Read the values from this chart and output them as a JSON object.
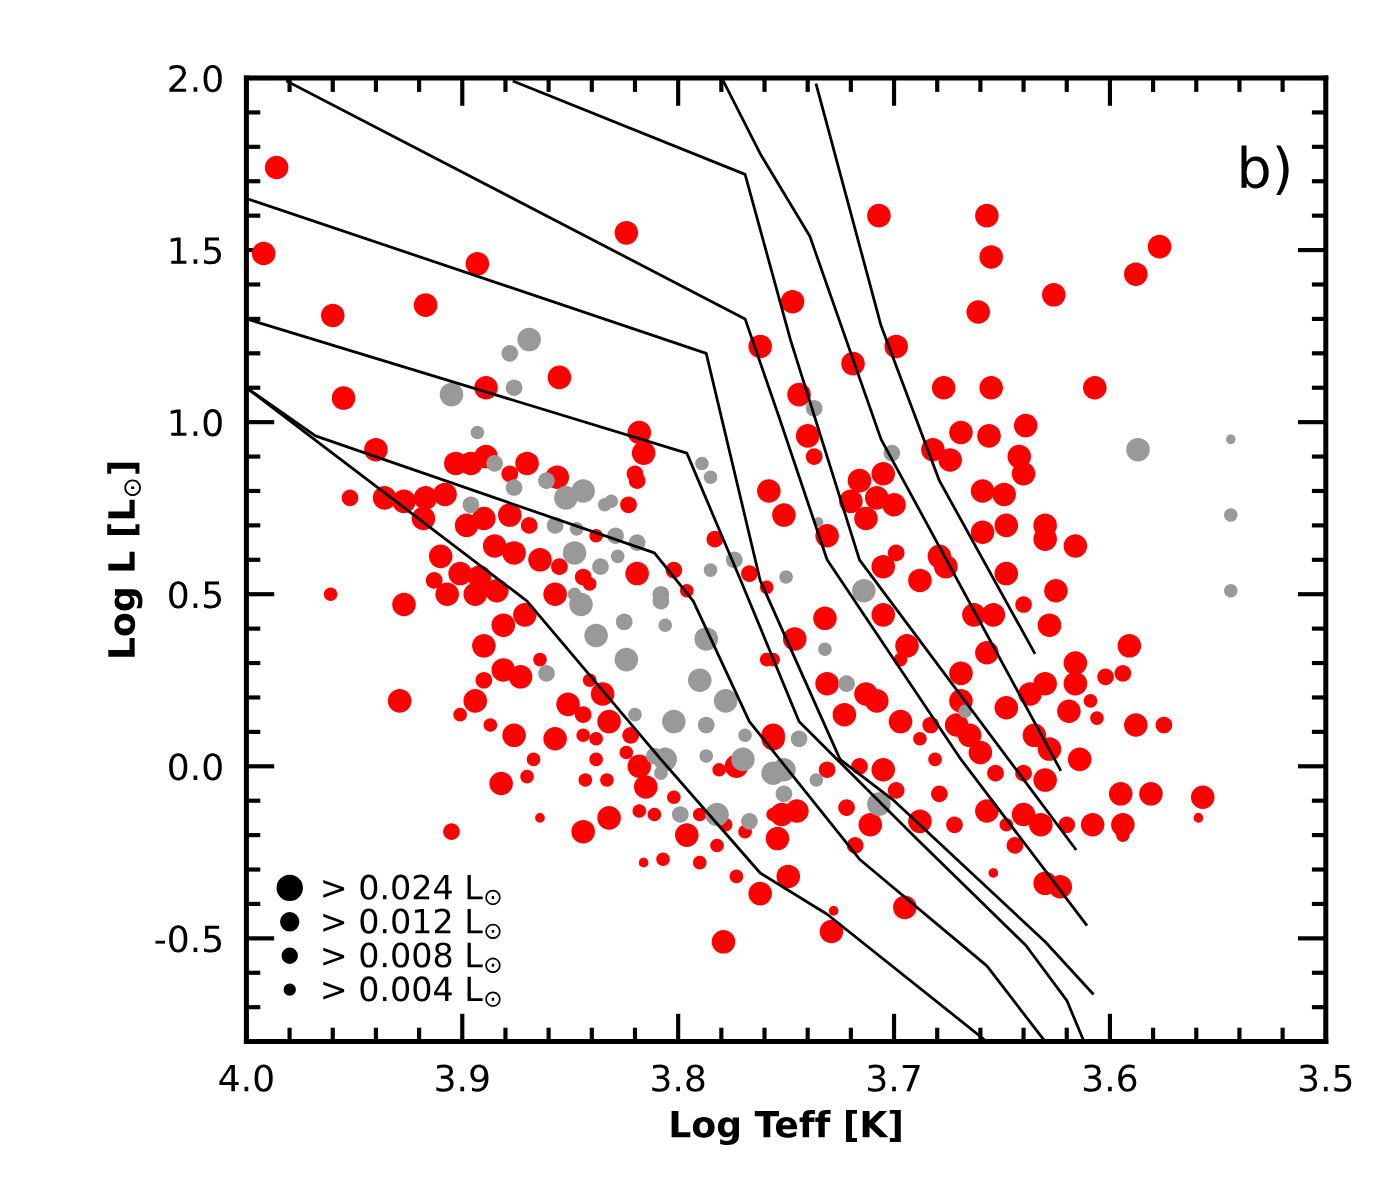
{
  "chart_data": {
    "type": "bubble",
    "xlabel": "Log Teff [K]",
    "ylabel": "Log L [L$_{⊙}$]",
    "annotations": [
      "b)"
    ],
    "xlim": [
      4.0,
      3.5
    ],
    "xticks": [
      {
        "value": 4,
        "label": "4.0"
      },
      3.9,
      3.8,
      3.7,
      3.6,
      3.5
    ],
    "ylim": [
      -0.8,
      2.0
    ],
    "yticks": [
      -0.5,
      {
        "value": 0,
        "label": "0.0"
      },
      0.5,
      {
        "value": 1,
        "label": "1.0"
      },
      1.5,
      {
        "value": 2,
        "label": "2.0"
      }
    ],
    "grid": false,
    "size_legend": [
      {
        "value": 0.024,
        "label": "> 0.024 L$_{⊙}$"
      },
      {
        "value": 0.012,
        "label": "> 0.012 L$_{⊙}$"
      },
      {
        "value": 0.008,
        "label": "> 0.008 L$_{⊙}$"
      },
      {
        "value": 0.004,
        "label": "> 0.004 L$_{⊙}$"
      }
    ],
    "series": [
      {
        "type": "line",
        "color": "#000000",
        "x": [
          4.0,
          3.87,
          3.808,
          3.762,
          3.731,
          3.657
        ],
        "values": [
          1.1,
          0.48,
          0.02,
          -0.31,
          -0.43,
          -0.8
        ]
      },
      {
        "type": "line",
        "color": "#000000",
        "x": [
          4.0,
          3.968,
          3.811,
          3.793,
          3.767,
          3.716,
          3.657,
          3.63
        ],
        "values": [
          1.1,
          0.96,
          0.62,
          0.48,
          0.13,
          -0.27,
          -0.58,
          -0.8
        ]
      },
      {
        "type": "line",
        "color": "#000000",
        "x": [
          4.0,
          3.796,
          3.771,
          3.744,
          3.688,
          3.639,
          3.62,
          3.612
        ],
        "values": [
          1.3,
          0.91,
          0.54,
          0.13,
          -0.22,
          -0.52,
          -0.68,
          -0.8
        ]
      },
      {
        "type": "line",
        "color": "#000000",
        "x": [
          4.0,
          3.787,
          3.762,
          3.725,
          3.7,
          3.63,
          3.608
        ],
        "values": [
          1.65,
          1.2,
          0.54,
          0.02,
          -0.1,
          -0.51,
          -0.66
        ]
      },
      {
        "type": "line",
        "color": "#000000",
        "x": [
          3.981,
          3.769,
          3.753,
          3.731,
          3.669,
          3.611
        ],
        "values": [
          1.99,
          1.3,
          1.01,
          0.6,
          0.02,
          -0.46
        ]
      },
      {
        "type": "line",
        "color": "#000000",
        "x": [
          3.876,
          3.769,
          3.748,
          3.716,
          3.616
        ],
        "values": [
          1.99,
          1.72,
          1.24,
          0.6,
          -0.24
        ]
      },
      {
        "type": "line",
        "color": "#000000",
        "x": [
          3.779,
          3.762,
          3.739,
          3.706,
          3.623
        ],
        "values": [
          1.99,
          1.78,
          1.54,
          0.95,
          -0.01
        ]
      },
      {
        "type": "line",
        "color": "#000000",
        "x": [
          3.736,
          3.706,
          3.679,
          3.635
        ],
        "values": [
          1.98,
          1.28,
          0.83,
          0.33
        ]
      },
      {
        "color": "#ff0000",
        "marker": "circle",
        "x": [
          3.986,
          3.992,
          3.893,
          3.824,
          3.96,
          3.917,
          3.955,
          3.889,
          3.855,
          3.818,
          3.816,
          3.819,
          3.707,
          3.657,
          3.655,
          3.661,
          3.626,
          3.588,
          3.577,
          3.747,
          3.762,
          3.699,
          3.719,
          3.677,
          3.655,
          3.607,
          3.744,
          3.74,
          3.737,
          3.669,
          3.656,
          3.639,
          3.682,
          3.674,
          3.642,
          3.64,
          3.705,
          3.716,
          3.72,
          3.708,
          3.7,
          3.659,
          3.649,
          3.758,
          3.751,
          3.713,
          3.659,
          3.648,
          3.63,
          3.63,
          3.616,
          3.699,
          3.731,
          3.676,
          3.648,
          3.625,
          3.679,
          3.591,
          3.628,
          3.616,
          3.602,
          3.594,
          3.63,
          3.616,
          3.637,
          3.609,
          3.619,
          3.606,
          3.588,
          3.575,
          3.635,
          3.628,
          3.614,
          3.63,
          3.595,
          3.581,
          3.557,
          3.559,
          3.594,
          3.594,
          3.608,
          3.62,
          3.632,
          3.644,
          3.63,
          3.623,
          3.654,
          3.64,
          3.657,
          3.648,
          3.688,
          3.672,
          3.679,
          3.699,
          3.705,
          3.722,
          3.711,
          3.718,
          3.695,
          3.729,
          3.728,
          3.749,
          3.754,
          3.752,
          3.705,
          3.694,
          3.697,
          3.713,
          3.708,
          3.697,
          3.723,
          3.731,
          3.732,
          3.746,
          3.759,
          3.756,
          3.716,
          3.731,
          3.683,
          3.681,
          3.688,
          3.669,
          3.671,
          3.66,
          3.669,
          3.657,
          3.688,
          3.705,
          3.663,
          3.654,
          3.64,
          3.648,
          3.665,
          3.653,
          3.64,
          3.94,
          3.952,
          3.936,
          3.927,
          3.917,
          3.908,
          3.918,
          3.903,
          3.896,
          3.889,
          3.87,
          3.878,
          3.898,
          3.89,
          3.878,
          3.869,
          3.885,
          3.876,
          3.864,
          3.91,
          3.901,
          3.913,
          3.892,
          3.855,
          3.844,
          3.856,
          3.82,
          3.823,
          3.819,
          3.838,
          3.802,
          3.783,
          3.767,
          3.961,
          3.927,
          3.929,
          3.905,
          3.907,
          3.894,
          3.884,
          3.89,
          3.881,
          3.871,
          3.89,
          3.881,
          3.873,
          3.864,
          3.901,
          3.887,
          3.876,
          3.882,
          3.87,
          3.867,
          3.857,
          3.851,
          3.844,
          3.841,
          3.832,
          3.835,
          3.844,
          3.838,
          3.822,
          3.824,
          3.818,
          3.815,
          3.833,
          3.811,
          3.818,
          3.832,
          3.844,
          3.802,
          3.796,
          3.79,
          3.782,
          3.778,
          3.807,
          3.816,
          3.79,
          3.773,
          3.762,
          3.779,
          3.864,
          3.894,
          3.857,
          3.843,
          3.838,
          3.781,
          3.773,
          3.756,
          3.756,
          3.769,
          3.745,
          3.756,
          3.759,
          3.796,
          3.841
        ],
        "values": [
          1.74,
          1.49,
          1.46,
          1.55,
          1.31,
          1.34,
          1.07,
          1.1,
          1.13,
          0.97,
          0.91,
          0.83,
          1.6,
          1.6,
          1.48,
          1.32,
          1.37,
          1.43,
          1.51,
          1.35,
          1.22,
          1.22,
          1.17,
          1.1,
          1.1,
          1.1,
          1.08,
          0.96,
          0.9,
          0.97,
          0.96,
          0.99,
          0.92,
          0.89,
          0.9,
          0.85,
          0.85,
          0.83,
          0.77,
          0.78,
          0.76,
          0.8,
          0.79,
          0.8,
          0.73,
          0.72,
          0.68,
          0.7,
          0.7,
          0.66,
          0.64,
          0.62,
          0.67,
          0.58,
          0.56,
          0.51,
          0.61,
          0.35,
          0.41,
          0.3,
          0.26,
          0.27,
          0.24,
          0.24,
          0.21,
          0.19,
          0.16,
          0.14,
          0.12,
          0.12,
          0.09,
          0.05,
          0.02,
          -0.04,
          -0.08,
          -0.08,
          -0.09,
          -0.15,
          -0.2,
          -0.17,
          -0.17,
          -0.17,
          -0.17,
          -0.23,
          -0.34,
          -0.35,
          -0.31,
          -0.14,
          -0.13,
          -0.17,
          -0.16,
          -0.17,
          -0.08,
          -0.07,
          -0.01,
          -0.12,
          -0.17,
          -0.23,
          -0.41,
          -0.48,
          -0.42,
          -0.32,
          -0.21,
          -0.14,
          0.44,
          0.35,
          0.31,
          0.21,
          0.19,
          0.13,
          0.15,
          0.24,
          0.43,
          0.37,
          0.31,
          0.08,
          0.0,
          -0.01,
          0.12,
          0.02,
          0.08,
          0.19,
          0.12,
          0.04,
          0.27,
          0.33,
          0.54,
          0.58,
          0.44,
          0.44,
          0.47,
          0.17,
          0.09,
          -0.02,
          -0.02,
          0.92,
          0.78,
          0.78,
          0.77,
          0.78,
          0.79,
          0.72,
          0.88,
          0.88,
          0.9,
          0.88,
          0.85,
          0.7,
          0.72,
          0.73,
          0.7,
          0.64,
          0.62,
          0.6,
          0.61,
          0.56,
          0.54,
          0.55,
          0.58,
          0.55,
          0.84,
          0.85,
          0.76,
          0.56,
          0.67,
          0.57,
          0.66,
          0.56,
          0.5,
          0.47,
          0.19,
          -0.19,
          0.5,
          0.5,
          0.51,
          0.35,
          0.41,
          0.44,
          0.25,
          0.28,
          0.26,
          0.31,
          0.15,
          0.12,
          0.09,
          -0.05,
          -0.03,
          0.02,
          0.08,
          0.18,
          0.15,
          0.25,
          0.13,
          0.21,
          0.09,
          0.08,
          0.09,
          0.04,
          0.0,
          -0.06,
          -0.04,
          -0.14,
          -0.13,
          -0.15,
          -0.19,
          -0.09,
          -0.2,
          -0.14,
          -0.23,
          -0.17,
          -0.27,
          -0.28,
          -0.28,
          -0.32,
          -0.37,
          -0.51,
          -0.15,
          0.19,
          0.5,
          -0.04,
          0.02,
          -0.01,
          0.0,
          0.09,
          -0.14,
          -0.19,
          -0.13,
          0.31,
          0.52,
          0.51,
          0.53
        ],
        "sizes": [
          0.024,
          0.024,
          0.024,
          0.024,
          0.024,
          0.024,
          0.024,
          0.024,
          0.024,
          0.024,
          0.024,
          0.012,
          0.024,
          0.024,
          0.024,
          0.024,
          0.024,
          0.024,
          0.024,
          0.024,
          0.024,
          0.024,
          0.024,
          0.024,
          0.024,
          0.024,
          0.024,
          0.024,
          0.012,
          0.024,
          0.024,
          0.024,
          0.024,
          0.024,
          0.024,
          0.024,
          0.024,
          0.024,
          0.024,
          0.024,
          0.024,
          0.024,
          0.024,
          0.024,
          0.024,
          0.024,
          0.024,
          0.024,
          0.024,
          0.024,
          0.024,
          0.012,
          0.024,
          0.024,
          0.024,
          0.024,
          0.024,
          0.024,
          0.024,
          0.024,
          0.012,
          0.012,
          0.024,
          0.024,
          0.024,
          0.008,
          0.024,
          0.008,
          0.024,
          0.012,
          0.024,
          0.024,
          0.024,
          0.024,
          0.024,
          0.024,
          0.024,
          0.004,
          0.008,
          0.024,
          0.024,
          0.012,
          0.024,
          0.012,
          0.024,
          0.024,
          0.004,
          0.024,
          0.024,
          0.008,
          0.024,
          0.012,
          0.012,
          0.012,
          0.024,
          0.012,
          0.024,
          0.012,
          0.024,
          0.024,
          0.004,
          0.024,
          0.024,
          0.024,
          0.024,
          0.024,
          0.008,
          0.024,
          0.024,
          0.024,
          0.024,
          0.024,
          0.024,
          0.024,
          0.008,
          0.024,
          0.012,
          0.012,
          0.012,
          0.008,
          0.008,
          0.024,
          0.024,
          0.024,
          0.024,
          0.024,
          0.024,
          0.024,
          0.024,
          0.024,
          0.012,
          0.024,
          0.024,
          0.012,
          0.012,
          0.024,
          0.012,
          0.024,
          0.024,
          0.024,
          0.024,
          0.024,
          0.024,
          0.024,
          0.024,
          0.024,
          0.012,
          0.024,
          0.024,
          0.024,
          0.012,
          0.024,
          0.024,
          0.024,
          0.024,
          0.024,
          0.012,
          0.024,
          0.012,
          0.012,
          0.024,
          0.012,
          0.012,
          0.024,
          0.008,
          0.012,
          0.012,
          0.012,
          0.008,
          0.024,
          0.024,
          0.012,
          0.024,
          0.024,
          0.024,
          0.024,
          0.024,
          0.024,
          0.012,
          0.024,
          0.024,
          0.008,
          0.008,
          0.008,
          0.024,
          0.024,
          0.008,
          0.008,
          0.024,
          0.024,
          0.012,
          0.008,
          0.024,
          0.024,
          0.008,
          0.008,
          0.012,
          0.008,
          0.024,
          0.024,
          0.008,
          0.008,
          0.008,
          0.024,
          0.024,
          0.008,
          0.024,
          0.008,
          0.008,
          0.008,
          0.008,
          0.004,
          0.008,
          0.008,
          0.024,
          0.024,
          0.004,
          0.024,
          0.024,
          0.008,
          0.008,
          0.008,
          0.024,
          0.024,
          0.008,
          0.008,
          0.024,
          0.008,
          0.008,
          0.008,
          0.008
        ]
      },
      {
        "color": "#999999",
        "marker": "circle",
        "x": [
          3.869,
          3.878,
          3.876,
          3.905,
          3.893,
          3.885,
          3.876,
          3.861,
          3.852,
          3.844,
          3.896,
          3.857,
          3.847,
          3.834,
          3.831,
          3.829,
          3.819,
          3.828,
          3.789,
          3.785,
          3.774,
          3.785,
          3.848,
          3.808,
          3.75,
          3.845,
          3.838,
          3.825,
          3.824,
          3.808,
          3.806,
          3.787,
          3.79,
          3.778,
          3.802,
          3.787,
          3.769,
          3.82,
          3.861,
          3.811,
          3.806,
          3.787,
          3.77,
          3.756,
          3.751,
          3.799,
          3.782,
          3.767,
          3.808,
          3.836,
          3.848,
          3.737,
          3.701,
          3.587,
          3.544,
          3.544,
          3.544,
          3.714,
          3.722,
          3.732,
          3.744,
          3.751,
          3.707,
          3.736,
          3.667,
          3.735
        ],
        "values": [
          1.24,
          1.2,
          1.1,
          1.08,
          0.97,
          0.88,
          0.81,
          0.83,
          0.78,
          0.8,
          0.76,
          0.7,
          0.69,
          0.76,
          0.77,
          0.67,
          0.65,
          0.61,
          0.88,
          0.84,
          0.6,
          0.57,
          0.62,
          0.5,
          0.55,
          0.47,
          0.38,
          0.42,
          0.31,
          0.48,
          0.41,
          0.37,
          0.25,
          0.19,
          0.13,
          0.12,
          0.09,
          0.15,
          0.27,
          0.03,
          0.02,
          0.03,
          0.02,
          -0.02,
          -0.08,
          -0.14,
          -0.14,
          -0.16,
          -0.02,
          0.58,
          0.5,
          1.04,
          0.91,
          0.92,
          0.95,
          0.73,
          0.51,
          0.51,
          0.24,
          0.34,
          0.08,
          -0.01,
          -0.11,
          -0.04,
          0.16,
          0.71
        ],
        "sizes": [
          0.024,
          0.012,
          0.012,
          0.024,
          0.008,
          0.012,
          0.012,
          0.012,
          0.024,
          0.024,
          0.012,
          0.012,
          0.008,
          0.008,
          0.008,
          0.012,
          0.012,
          0.008,
          0.008,
          0.008,
          0.012,
          0.008,
          0.024,
          0.012,
          0.008,
          0.024,
          0.024,
          0.012,
          0.024,
          0.012,
          0.008,
          0.024,
          0.024,
          0.024,
          0.024,
          0.012,
          0.008,
          0.008,
          0.012,
          0.012,
          0.024,
          0.008,
          0.024,
          0.024,
          0.012,
          0.012,
          0.024,
          0.012,
          0.008,
          0.012,
          0.008,
          0.012,
          0.012,
          0.024,
          0.004,
          0.008,
          0.008,
          0.024,
          0.012,
          0.008,
          0.012,
          0.024,
          0.024,
          0.008,
          0.008,
          0.004
        ]
      }
    ]
  }
}
